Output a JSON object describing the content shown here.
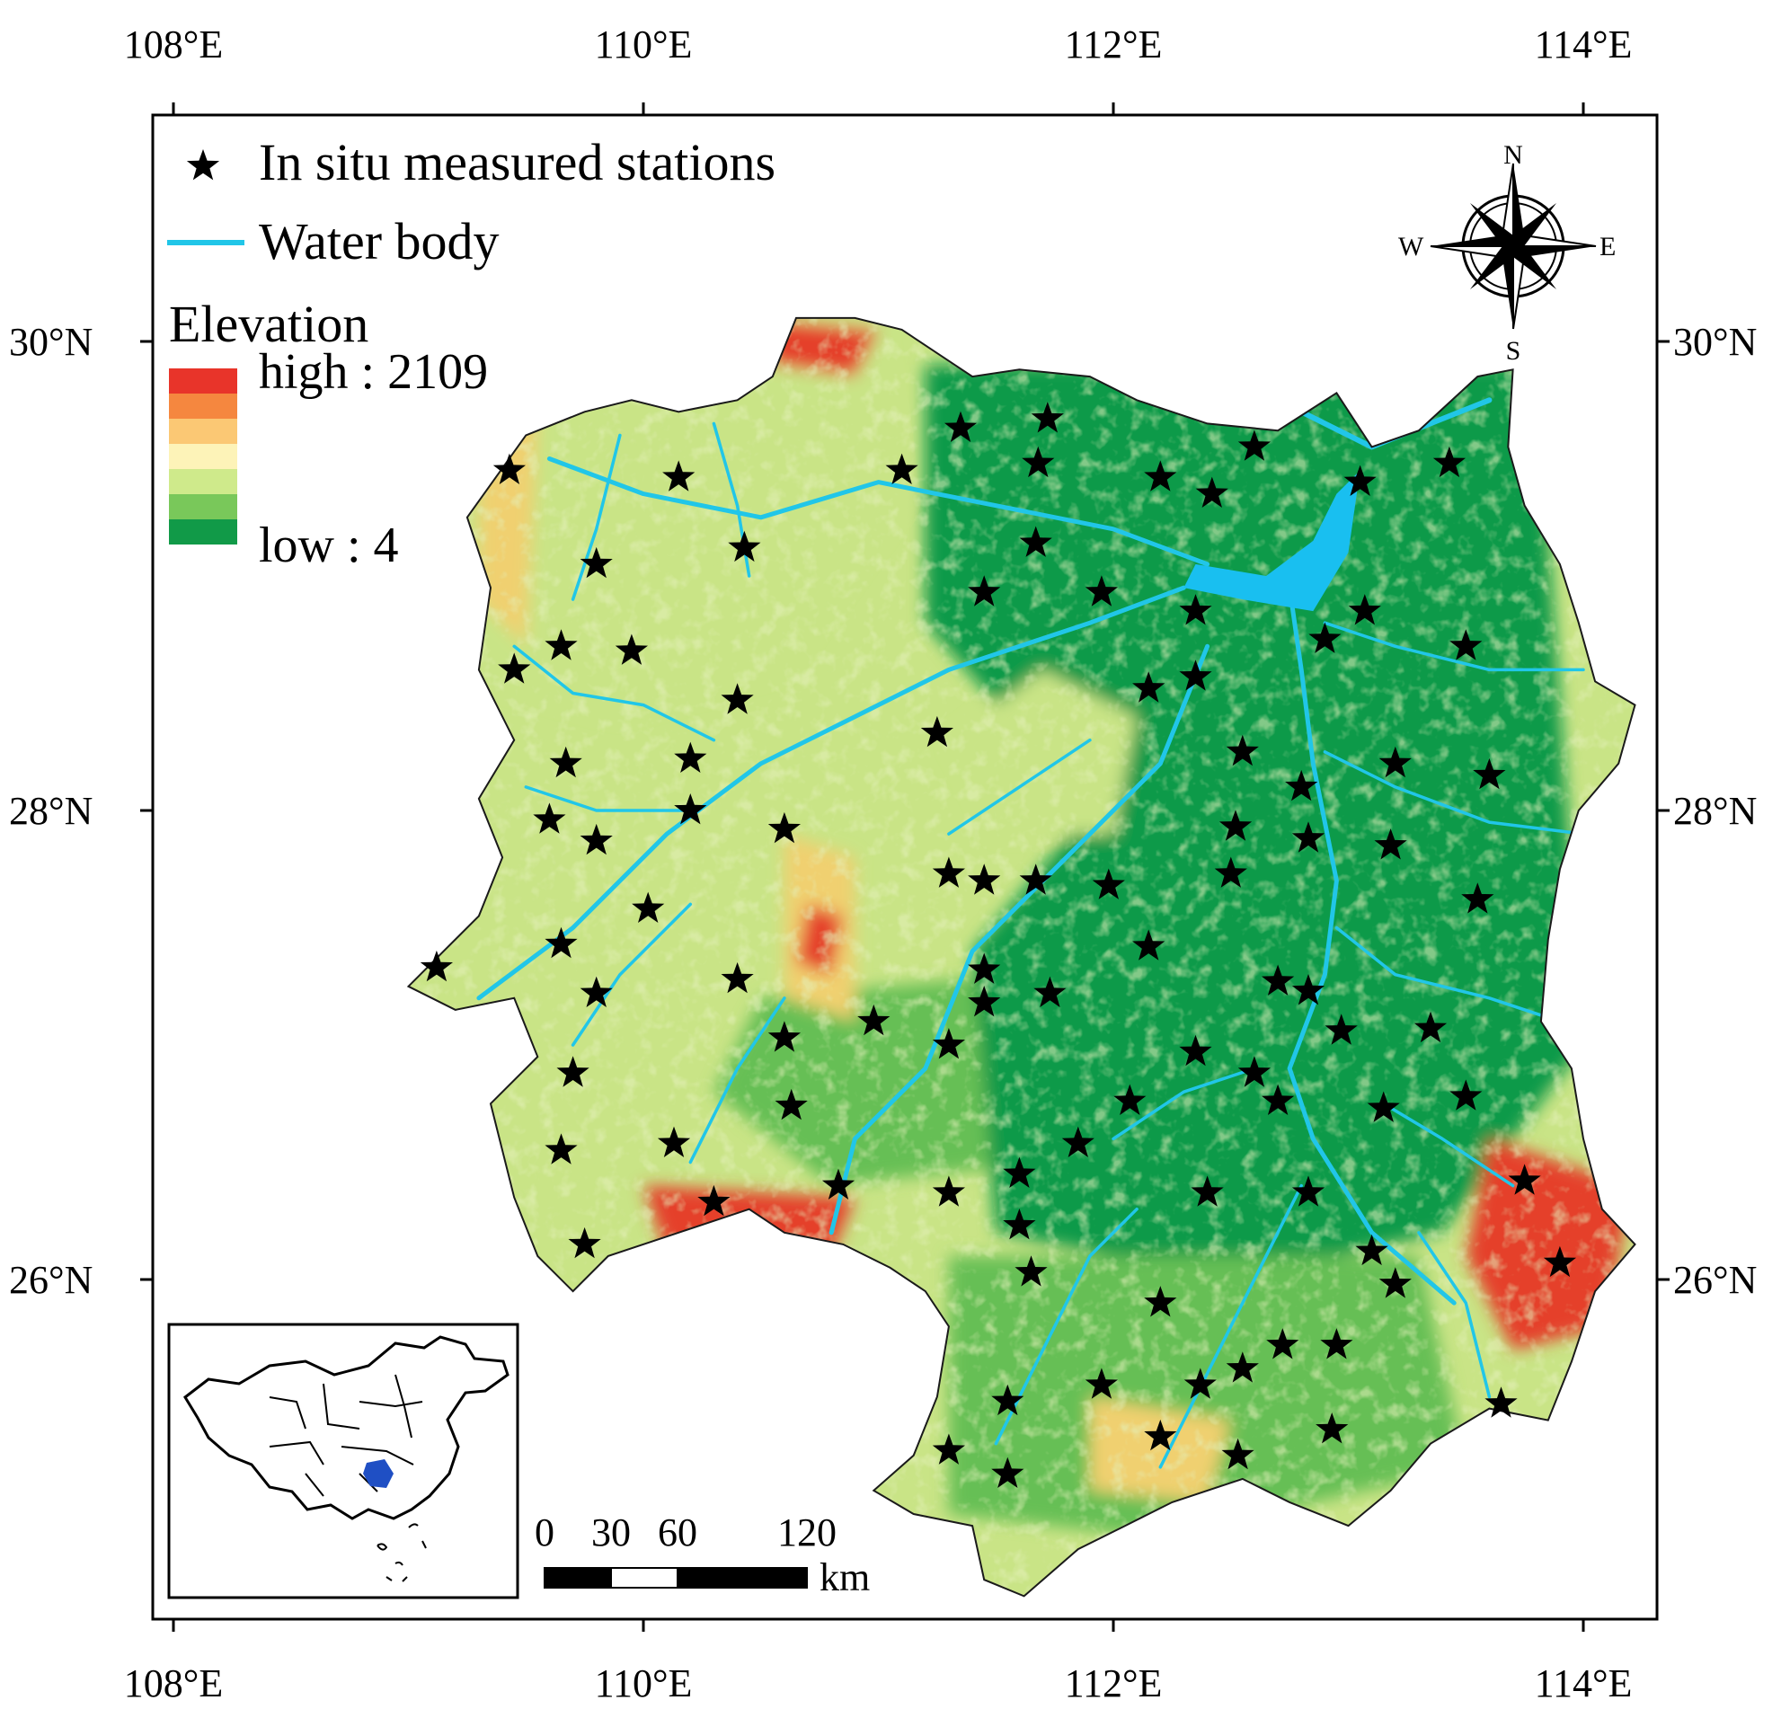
{
  "axes": {
    "lon_labels": [
      "108°E",
      "110°E",
      "112°E",
      "114°E"
    ],
    "lat_labels": [
      "30°N",
      "28°N",
      "26°N"
    ]
  },
  "legend": {
    "stations_label": "In situ measured stations",
    "water_label": "Water body",
    "elevation_title": "Elevation",
    "high_label": "high : 2109",
    "low_label": "low : 4",
    "ramp_colors": [
      "#e8342a",
      "#f5873f",
      "#fbc874",
      "#fdf3b8",
      "#cfea8b",
      "#79c85a",
      "#119a48"
    ]
  },
  "colors": {
    "water": "#21c6e8",
    "lake": "#19bff0",
    "lowland": "#119a48",
    "midland": "#66bf55",
    "upland": "#c9e486",
    "highland": "#f0d070",
    "peak": "#e5402c",
    "inset_province": "#1f4fc4"
  },
  "compass": {
    "n": "N",
    "s": "S",
    "e": "E",
    "w": "W"
  },
  "scalebar": {
    "ticks": [
      "0",
      "30",
      "60",
      "120"
    ],
    "unit": "km"
  },
  "stations": [
    [
      109.43,
      29.45
    ],
    [
      110.15,
      29.42
    ],
    [
      111.1,
      29.45
    ],
    [
      111.35,
      29.63
    ],
    [
      111.72,
      29.67
    ],
    [
      111.68,
      29.48
    ],
    [
      112.2,
      29.42
    ],
    [
      112.42,
      29.35
    ],
    [
      112.6,
      29.55
    ],
    [
      113.05,
      29.4
    ],
    [
      113.43,
      29.48
    ],
    [
      110.43,
      29.12
    ],
    [
      109.8,
      29.05
    ],
    [
      111.67,
      29.14
    ],
    [
      111.45,
      28.93
    ],
    [
      111.95,
      28.93
    ],
    [
      112.35,
      28.85
    ],
    [
      112.9,
      28.73
    ],
    [
      113.07,
      28.85
    ],
    [
      113.5,
      28.7
    ],
    [
      109.45,
      28.6
    ],
    [
      109.65,
      28.7
    ],
    [
      109.95,
      28.68
    ],
    [
      110.4,
      28.47
    ],
    [
      112.15,
      28.52
    ],
    [
      112.35,
      28.57
    ],
    [
      111.25,
      28.33
    ],
    [
      109.67,
      28.2
    ],
    [
      110.2,
      28.22
    ],
    [
      112.55,
      28.25
    ],
    [
      113.2,
      28.2
    ],
    [
      113.6,
      28.15
    ],
    [
      112.8,
      28.1
    ],
    [
      109.6,
      27.96
    ],
    [
      109.8,
      27.87
    ],
    [
      110.2,
      28.0
    ],
    [
      110.6,
      27.92
    ],
    [
      112.52,
      27.93
    ],
    [
      112.83,
      27.88
    ],
    [
      113.18,
      27.85
    ],
    [
      111.3,
      27.73
    ],
    [
      111.45,
      27.7
    ],
    [
      111.67,
      27.7
    ],
    [
      111.98,
      27.68
    ],
    [
      112.5,
      27.73
    ],
    [
      113.55,
      27.62
    ],
    [
      110.02,
      27.58
    ],
    [
      109.65,
      27.43
    ],
    [
      109.12,
      27.33
    ],
    [
      112.15,
      27.42
    ],
    [
      110.4,
      27.28
    ],
    [
      111.45,
      27.32
    ],
    [
      112.7,
      27.27
    ],
    [
      112.83,
      27.23
    ],
    [
      111.73,
      27.22
    ],
    [
      109.8,
      27.22
    ],
    [
      111.45,
      27.18
    ],
    [
      110.98,
      27.1
    ],
    [
      113.35,
      27.07
    ],
    [
      112.97,
      27.06
    ],
    [
      110.6,
      27.03
    ],
    [
      111.3,
      27.0
    ],
    [
      112.35,
      26.97
    ],
    [
      113.15,
      26.73
    ],
    [
      109.7,
      26.88
    ],
    [
      112.6,
      26.88
    ],
    [
      113.5,
      26.78
    ],
    [
      112.07,
      26.76
    ],
    [
      112.7,
      26.76
    ],
    [
      110.63,
      26.74
    ],
    [
      109.65,
      26.55
    ],
    [
      110.13,
      26.58
    ],
    [
      111.85,
      26.58
    ],
    [
      111.6,
      26.45
    ],
    [
      113.75,
      26.42
    ],
    [
      110.83,
      26.4
    ],
    [
      111.3,
      26.37
    ],
    [
      112.4,
      26.37
    ],
    [
      112.83,
      26.37
    ],
    [
      110.3,
      26.33
    ],
    [
      111.6,
      26.23
    ],
    [
      109.75,
      26.15
    ],
    [
      113.1,
      26.12
    ],
    [
      113.9,
      26.07
    ],
    [
      111.65,
      26.03
    ],
    [
      113.2,
      25.98
    ],
    [
      112.2,
      25.9
    ],
    [
      112.72,
      25.72
    ],
    [
      112.95,
      25.72
    ],
    [
      111.95,
      25.55
    ],
    [
      112.37,
      25.55
    ],
    [
      112.55,
      25.62
    ],
    [
      111.55,
      25.48
    ],
    [
      113.65,
      25.47
    ],
    [
      112.2,
      25.33
    ],
    [
      112.93,
      25.36
    ],
    [
      111.3,
      25.27
    ],
    [
      112.53,
      25.25
    ],
    [
      111.55,
      25.17
    ]
  ]
}
